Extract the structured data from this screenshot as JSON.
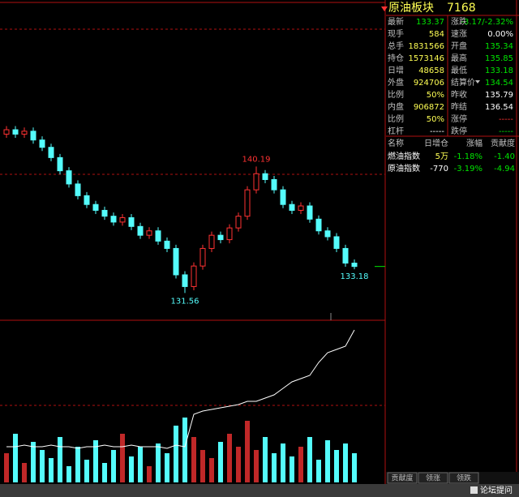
{
  "header": {
    "title": "原油板块",
    "code": "7168"
  },
  "quote": {
    "rows": [
      [
        "最新",
        "133.37",
        "涨跌",
        "-3.17/-2.32%"
      ],
      [
        "现手",
        "584",
        "速涨",
        "0.00%"
      ],
      [
        "总手",
        "1831566",
        "开盘",
        "135.34"
      ],
      [
        "持仓",
        "1573146",
        "最高",
        "135.85"
      ],
      [
        "日增",
        "48658",
        "最低",
        "133.18"
      ],
      [
        "外盘",
        "924706",
        "结算价",
        "134.54"
      ],
      [
        "比例",
        "50%",
        "昨收",
        "135.79"
      ],
      [
        "内盘",
        "906872",
        "昨结",
        "136.54"
      ],
      [
        "比例",
        "50%",
        "涨停",
        "-----"
      ],
      [
        "杠杆",
        "-----",
        "跌停",
        "-----"
      ]
    ]
  },
  "components": {
    "columns": [
      "名称",
      "日增仓",
      "涨幅",
      "贡献度"
    ],
    "rows": [
      [
        "燃油指数",
        "5万",
        "-1.18%",
        "-1.40"
      ],
      [
        "原油指数",
        "-770",
        "-3.19%",
        "-4.94"
      ]
    ]
  },
  "tabs": [
    "贡献度",
    "领涨",
    "领跌"
  ],
  "watermark": "论坛提问",
  "chart_data": [
    {
      "type": "candlestick",
      "ylim": [
        129.7,
        151
      ],
      "up_color": "#ff3232",
      "down_color": "#54fcfc",
      "open": [
        142.4,
        142.7,
        142.4,
        142.6,
        142.0,
        141.5,
        140.8,
        139.9,
        139.0,
        138.2,
        137.6,
        137.2,
        136.8,
        136.4,
        136.7,
        136.1,
        135.5,
        135.8,
        135.1,
        134.6,
        132.8,
        132.0,
        133.4,
        134.6,
        135.5,
        135.2,
        136.0,
        136.8,
        138.6,
        139.7,
        139.3,
        138.6,
        137.6,
        137.2,
        137.5,
        136.6,
        135.8,
        135.4,
        134.6,
        133.6
      ],
      "high": [
        142.95,
        142.95,
        142.85,
        142.85,
        142.25,
        141.75,
        141.05,
        140.15,
        139.25,
        138.45,
        137.85,
        137.45,
        137.05,
        136.95,
        136.95,
        136.35,
        136.05,
        136.05,
        135.35,
        134.85,
        133.05,
        133.65,
        134.85,
        135.75,
        135.75,
        136.25,
        137.05,
        138.85,
        140.19,
        139.95,
        139.55,
        138.85,
        137.85,
        137.75,
        137.75,
        136.85,
        136.05,
        135.65,
        134.85,
        133.85
      ],
      "low": [
        142.15,
        142.15,
        142.15,
        141.75,
        141.25,
        140.55,
        139.65,
        138.75,
        137.95,
        137.35,
        136.95,
        136.55,
        136.15,
        136.15,
        135.85,
        135.25,
        135.25,
        134.85,
        134.35,
        132.55,
        131.56,
        131.75,
        133.15,
        134.35,
        134.95,
        134.95,
        135.75,
        136.55,
        138.35,
        139.05,
        138.35,
        137.35,
        136.95,
        136.95,
        136.35,
        135.55,
        135.15,
        134.35,
        133.35,
        133.18
      ],
      "close": [
        142.7,
        142.4,
        142.6,
        142.0,
        141.5,
        140.8,
        139.9,
        139.0,
        138.2,
        137.6,
        137.2,
        136.8,
        136.4,
        136.7,
        136.1,
        135.5,
        135.8,
        135.1,
        134.6,
        132.8,
        132.0,
        133.4,
        134.6,
        135.5,
        135.2,
        136.0,
        136.8,
        138.6,
        139.7,
        139.3,
        138.6,
        137.6,
        137.2,
        137.5,
        136.6,
        135.8,
        135.4,
        134.6,
        133.6,
        133.37
      ]
    },
    {
      "type": "bar",
      "ylim": [
        0,
        100
      ],
      "line_color": "#ffffff",
      "values": [
        18,
        30,
        12,
        25,
        20,
        15,
        28,
        10,
        22,
        14,
        26,
        12,
        20,
        30,
        16,
        22,
        10,
        24,
        18,
        35,
        40,
        28,
        20,
        15,
        25,
        30,
        22,
        38,
        20,
        28,
        18,
        24,
        16,
        22,
        28,
        14,
        26,
        20,
        24,
        18
      ],
      "line_values": [
        22,
        22,
        23,
        22,
        22,
        23,
        22,
        22,
        21,
        22,
        22,
        23,
        22,
        22,
        23,
        22,
        22,
        22,
        21,
        23,
        22,
        42,
        44,
        45,
        46,
        47,
        48,
        50,
        50,
        52,
        54,
        58,
        62,
        64,
        66,
        74,
        80,
        82,
        84,
        94
      ]
    }
  ]
}
